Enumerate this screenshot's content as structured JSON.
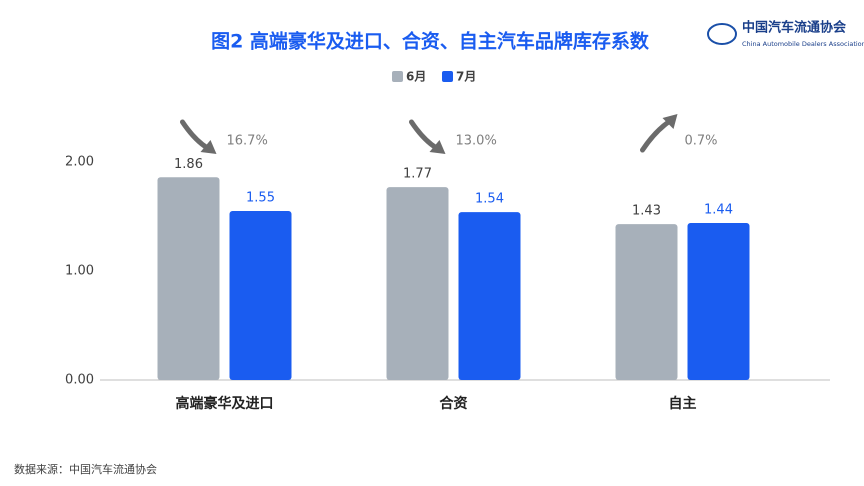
{
  "chart_data": {
    "type": "bar",
    "title": "图2  高端豪华及进口、合资、自主汽车品牌库存系数",
    "logo": {
      "name": "中国汽车流通协会",
      "subtitle": "China Automobile Dealers Association"
    },
    "categories": [
      "高端豪华及进口",
      "合资",
      "自主"
    ],
    "series": [
      {
        "name": "6月",
        "color": "#a7b0ba",
        "label_color": "#404040",
        "values": [
          1.86,
          1.77,
          1.43
        ]
      },
      {
        "name": "7月",
        "color": "#1a5cf0",
        "label_color": "#1a5cf0",
        "values": [
          1.55,
          1.54,
          1.44
        ]
      }
    ],
    "annotations": [
      {
        "text": "16.7%",
        "direction": "down"
      },
      {
        "text": "13.0%",
        "direction": "down"
      },
      {
        "text": "0.7%",
        "direction": "up"
      }
    ],
    "ylim": [
      0,
      2
    ],
    "yticks": [
      {
        "value": 0,
        "label": "0.00"
      },
      {
        "value": 1,
        "label": "1.00"
      },
      {
        "value": 2,
        "label": "2.00"
      }
    ],
    "source": "数据来源：中国汽车流通协会"
  }
}
